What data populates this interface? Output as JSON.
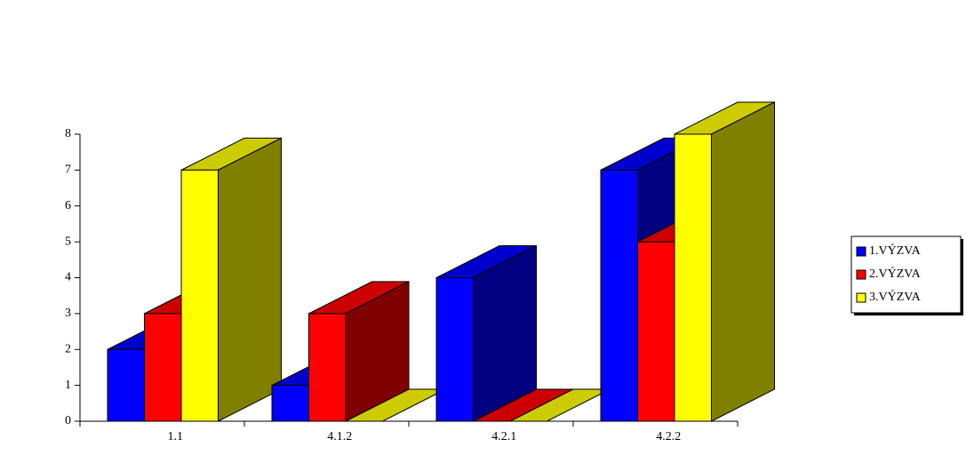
{
  "chart_data": {
    "type": "bar3d",
    "categories": [
      "1.1",
      "4.1.2",
      "4.2.1",
      "4.2.2"
    ],
    "series": [
      {
        "name": "1.VÝZVA",
        "color": "#0000ff",
        "values": [
          2,
          1,
          4,
          7
        ]
      },
      {
        "name": "2.VÝZVA",
        "color": "#ff0000",
        "values": [
          3,
          3,
          0,
          5
        ]
      },
      {
        "name": "3.VÝZVA",
        "color": "#ffff00",
        "values": [
          7,
          0,
          0,
          8
        ]
      }
    ],
    "ylim": [
      0,
      8
    ],
    "yticks": [
      0,
      1,
      2,
      3,
      4,
      5,
      6,
      7,
      8
    ],
    "legend": "right"
  }
}
